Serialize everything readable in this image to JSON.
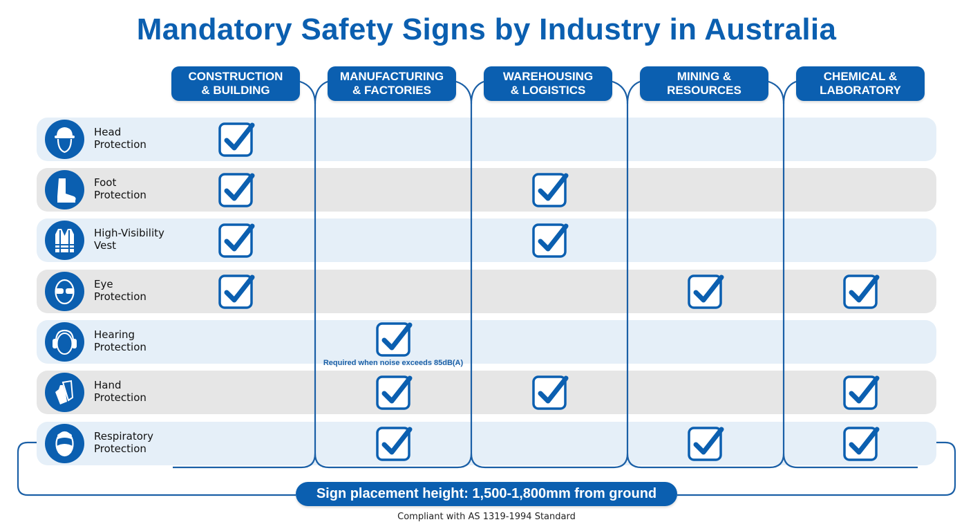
{
  "title": "Mandatory Safety Signs by Industry in Australia",
  "colors": {
    "brand_blue": "#0b5fb0",
    "row_blue": "#e5eff8",
    "row_gray": "#e6e6e6",
    "frame_line": "#1a5fa6"
  },
  "industries": [
    {
      "line1": "CONSTRUCTION",
      "line2": "& BUILDING"
    },
    {
      "line1": "MANUFACTURING",
      "line2": "& FACTORIES"
    },
    {
      "line1": "WAREHOUSING",
      "line2": "& LOGISTICS"
    },
    {
      "line1": "MINING &",
      "line2": "RESOURCES"
    },
    {
      "line1": "CHEMICAL &",
      "line2": "LABORATORY"
    }
  ],
  "signs": [
    {
      "line1": "Head",
      "line2": "Protection",
      "icon": "hard-hat-icon",
      "required": [
        true,
        false,
        false,
        false,
        false
      ]
    },
    {
      "line1": "Foot",
      "line2": "Protection",
      "icon": "safety-boot-icon",
      "required": [
        true,
        false,
        true,
        false,
        false
      ]
    },
    {
      "line1": "High-Visibility",
      "line2": "Vest",
      "icon": "hi-vis-vest-icon",
      "required": [
        true,
        false,
        true,
        false,
        false
      ]
    },
    {
      "line1": "Eye",
      "line2": "Protection",
      "icon": "safety-glasses-icon",
      "required": [
        true,
        false,
        false,
        true,
        true
      ]
    },
    {
      "line1": "Hearing",
      "line2": "Protection",
      "icon": "ear-muffs-icon",
      "required": [
        false,
        true,
        false,
        false,
        false
      ]
    },
    {
      "line1": "Hand",
      "line2": "Protection",
      "icon": "gloves-icon",
      "required": [
        false,
        true,
        true,
        false,
        true
      ]
    },
    {
      "line1": "Respiratory",
      "line2": "Protection",
      "icon": "face-mask-icon",
      "required": [
        false,
        true,
        false,
        true,
        true
      ]
    }
  ],
  "notes": {
    "hearing_manufacturing": "Required when noise exceeds 85dB(A)"
  },
  "placement_height": "Sign placement height: 1,500-1,800mm from ground",
  "footer": "Compliant with AS 1319-1994 Standard"
}
